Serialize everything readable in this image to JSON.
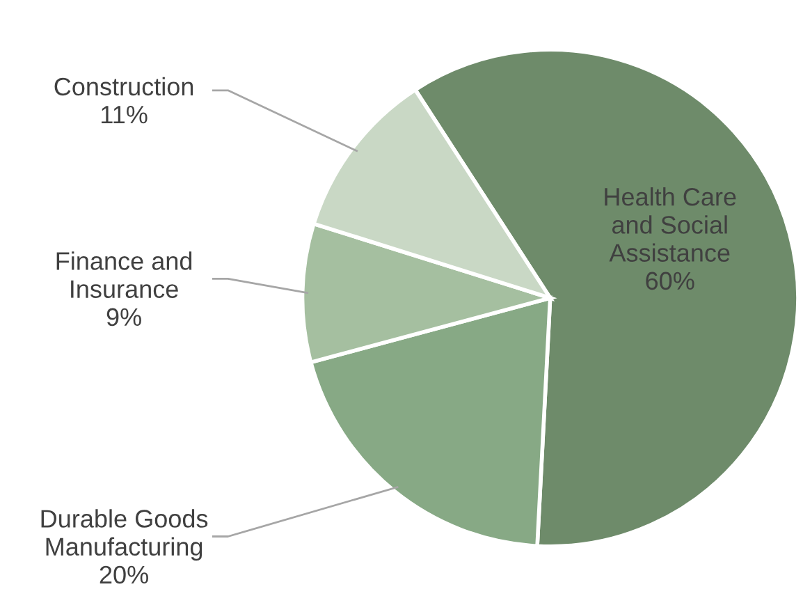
{
  "chart_data": {
    "type": "pie",
    "categories": [
      "Health Care\nand Social\nAssistance",
      "Durable Goods\nManufacturing",
      "Finance and\nInsurance",
      "Construction"
    ],
    "values": [
      60,
      20,
      9,
      11
    ],
    "value_labels": [
      "60%",
      "20%",
      "9%",
      "11%"
    ],
    "colors": [
      "#6e8b6a",
      "#87a985",
      "#a5bfa0",
      "#c9d8c5"
    ],
    "legend": false
  }
}
